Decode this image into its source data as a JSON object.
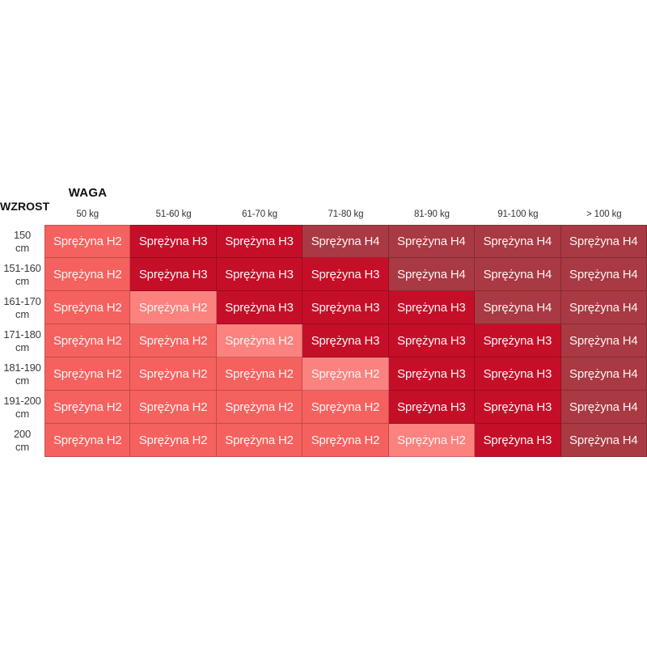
{
  "axes": {
    "column_axis_title": "WAGA",
    "row_axis_title": "WZROST"
  },
  "columns": [
    "50 kg",
    "51-60 kg",
    "61-70 kg",
    "71-80 kg",
    "81-90 kg",
    "91-100 kg",
    "> 100 kg"
  ],
  "rows": [
    {
      "height": "150",
      "unit": "cm",
      "cells": [
        {
          "label": "Sprężyna H2",
          "color_key": "H2"
        },
        {
          "label": "Sprężyna H3",
          "color_key": "H3"
        },
        {
          "label": "Sprężyna H3",
          "color_key": "H3"
        },
        {
          "label": "Sprężyna H4",
          "color_key": "H4"
        },
        {
          "label": "Sprężyna H4",
          "color_key": "H4"
        },
        {
          "label": "Sprężyna H4",
          "color_key": "H4"
        },
        {
          "label": "Sprężyna H4",
          "color_key": "H4"
        }
      ]
    },
    {
      "height": "151-160",
      "unit": "cm",
      "cells": [
        {
          "label": "Sprężyna H2",
          "color_key": "H2"
        },
        {
          "label": "Sprężyna H3",
          "color_key": "H3"
        },
        {
          "label": "Sprężyna H3",
          "color_key": "H3"
        },
        {
          "label": "Sprężyna H3",
          "color_key": "H3"
        },
        {
          "label": "Sprężyna H4",
          "color_key": "H4"
        },
        {
          "label": "Sprężyna H4",
          "color_key": "H4"
        },
        {
          "label": "Sprężyna H4",
          "color_key": "H4"
        }
      ]
    },
    {
      "height": "161-170",
      "unit": "cm",
      "cells": [
        {
          "label": "Sprężyna H2",
          "color_key": "H2"
        },
        {
          "label": "Sprężyna H2",
          "color_key": "H2_light"
        },
        {
          "label": "Sprężyna H3",
          "color_key": "H3"
        },
        {
          "label": "Sprężyna H3",
          "color_key": "H3"
        },
        {
          "label": "Sprężyna H3",
          "color_key": "H3"
        },
        {
          "label": "Sprężyna H4",
          "color_key": "H4"
        },
        {
          "label": "Sprężyna H4",
          "color_key": "H4"
        }
      ]
    },
    {
      "height": "171-180",
      "unit": "cm",
      "cells": [
        {
          "label": "Sprężyna H2",
          "color_key": "H2"
        },
        {
          "label": "Sprężyna H2",
          "color_key": "H2"
        },
        {
          "label": "Sprężyna H2",
          "color_key": "H2_light"
        },
        {
          "label": "Sprężyna H3",
          "color_key": "H3"
        },
        {
          "label": "Sprężyna H3",
          "color_key": "H3"
        },
        {
          "label": "Sprężyna H3",
          "color_key": "H3"
        },
        {
          "label": "Sprężyna H4",
          "color_key": "H4"
        }
      ]
    },
    {
      "height": "181-190",
      "unit": "cm",
      "cells": [
        {
          "label": "Sprężyna H2",
          "color_key": "H2"
        },
        {
          "label": "Sprężyna H2",
          "color_key": "H2"
        },
        {
          "label": "Sprężyna H2",
          "color_key": "H2"
        },
        {
          "label": "Sprężyna H2",
          "color_key": "H2_light"
        },
        {
          "label": "Sprężyna H3",
          "color_key": "H3"
        },
        {
          "label": "Sprężyna H3",
          "color_key": "H3"
        },
        {
          "label": "Sprężyna H4",
          "color_key": "H4"
        }
      ]
    },
    {
      "height": "191-200",
      "unit": "cm",
      "cells": [
        {
          "label": "Sprężyna H2",
          "color_key": "H2"
        },
        {
          "label": "Sprężyna H2",
          "color_key": "H2"
        },
        {
          "label": "Sprężyna H2",
          "color_key": "H2"
        },
        {
          "label": "Sprężyna H2",
          "color_key": "H2"
        },
        {
          "label": "Sprężyna H3",
          "color_key": "H3"
        },
        {
          "label": "Sprężyna H3",
          "color_key": "H3"
        },
        {
          "label": "Sprężyna H4",
          "color_key": "H4"
        }
      ]
    },
    {
      "height": "200",
      "unit": "cm",
      "cells": [
        {
          "label": "Sprężyna H2",
          "color_key": "H2"
        },
        {
          "label": "Sprężyna H2",
          "color_key": "H2"
        },
        {
          "label": "Sprężyna H2",
          "color_key": "H2"
        },
        {
          "label": "Sprężyna H2",
          "color_key": "H2"
        },
        {
          "label": "Sprężyna H2",
          "color_key": "H2_light"
        },
        {
          "label": "Sprężyna H3",
          "color_key": "H3"
        },
        {
          "label": "Sprężyna H4",
          "color_key": "H4"
        }
      ]
    }
  ],
  "colors": {
    "H2": "#F5615E",
    "H2_light": "#FB827E",
    "H3": "#C50F29",
    "H4": "#A93942",
    "cell_text": "#FCF5F5"
  },
  "chart_data": {
    "type": "heatmap",
    "title": "",
    "xlabel": "WAGA",
    "ylabel": "WZROST",
    "x_categories": [
      "50 kg",
      "51-60 kg",
      "61-70 kg",
      "71-80 kg",
      "81-90 kg",
      "91-100 kg",
      "> 100 kg"
    ],
    "y_categories": [
      "150 cm",
      "151-160 cm",
      "161-170 cm",
      "171-180 cm",
      "181-190 cm",
      "191-200 cm",
      "200 cm"
    ],
    "values": [
      [
        "H2",
        "H3",
        "H3",
        "H4",
        "H4",
        "H4",
        "H4"
      ],
      [
        "H2",
        "H3",
        "H3",
        "H3",
        "H4",
        "H4",
        "H4"
      ],
      [
        "H2",
        "H2",
        "H3",
        "H3",
        "H3",
        "H4",
        "H4"
      ],
      [
        "H2",
        "H2",
        "H2",
        "H3",
        "H3",
        "H3",
        "H4"
      ],
      [
        "H2",
        "H2",
        "H2",
        "H2",
        "H3",
        "H3",
        "H4"
      ],
      [
        "H2",
        "H2",
        "H2",
        "H2",
        "H3",
        "H3",
        "H4"
      ],
      [
        "H2",
        "H2",
        "H2",
        "H2",
        "H2",
        "H3",
        "H4"
      ]
    ],
    "legend_position": "none",
    "grid": true
  }
}
